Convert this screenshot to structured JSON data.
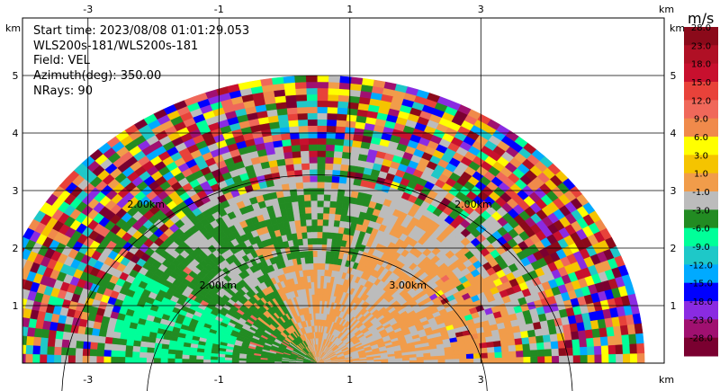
{
  "info": {
    "start_time": "Start time: 2023/08/08 01:01:29.053",
    "site": "WLS200s-181/WLS200s-181",
    "field": "Field: VEL",
    "azimuth": "Azimuth(deg): 350.00",
    "nrays": "NRays: 90"
  },
  "chart_data": {
    "type": "heatmap",
    "plot": "RHI radial velocity (half-disc) display",
    "x_unit": "km",
    "y_unit": "km",
    "xlim": [
      -4.0,
      5.8
    ],
    "ylim": [
      0.0,
      6.0
    ],
    "x_ticks": [
      "-3",
      "-1",
      "1",
      "3"
    ],
    "x_tick_values": [
      -3,
      -1,
      1,
      3
    ],
    "y_ticks": [
      "1",
      "2",
      "3",
      "4",
      "5"
    ],
    "y_tick_values": [
      1,
      2,
      3,
      4,
      5
    ],
    "grid": true,
    "axis_unit_label": "km",
    "range_rings": [
      {
        "label": "2.00km",
        "radius_km": 2.0
      },
      {
        "label": "3.00km",
        "radius_km": 3.0
      },
      {
        "label": "2.00km",
        "radius_km": 2.0
      },
      {
        "label": "2.00km",
        "radius_km": 2.0
      }
    ],
    "origin_x_km": 0.5,
    "max_range_km": 5.0,
    "colorbar": {
      "unit": "m/s",
      "labels": [
        "28.0",
        "23.0",
        "18.0",
        "15.0",
        "12.0",
        "9.0",
        "6.0",
        "3.0",
        "1.0",
        "-1.0",
        "-3.0",
        "-6.0",
        "-9.0",
        "-12.0",
        "-15.0",
        "-18.0",
        "-23.0",
        "-28.0"
      ],
      "colors": [
        "#8b0a1a",
        "#b01025",
        "#c8102e",
        "#e8423a",
        "#f0685a",
        "#f08a4b",
        "#ffff00",
        "#f5c400",
        "#f19c4a",
        "#bcbcbc",
        "#228b22",
        "#00ff99",
        "#1ec8c8",
        "#00aaff",
        "#0000ff",
        "#8a2be2",
        "#a01070",
        "#7a0030"
      ]
    },
    "regions": [
      {
        "name": "near-field-positive",
        "color": "#f19c4a",
        "velocity": 1.0
      },
      {
        "name": "near-field-neutral",
        "color": "#bcbcbc",
        "velocity": 0.0
      },
      {
        "name": "left-negative",
        "color": "#228b22",
        "velocity": -3.0
      },
      {
        "name": "left-strong-negative",
        "color": "#00ff99",
        "velocity": -6.0
      },
      {
        "name": "outer-noise",
        "color": "mixed",
        "velocity": null
      }
    ]
  }
}
